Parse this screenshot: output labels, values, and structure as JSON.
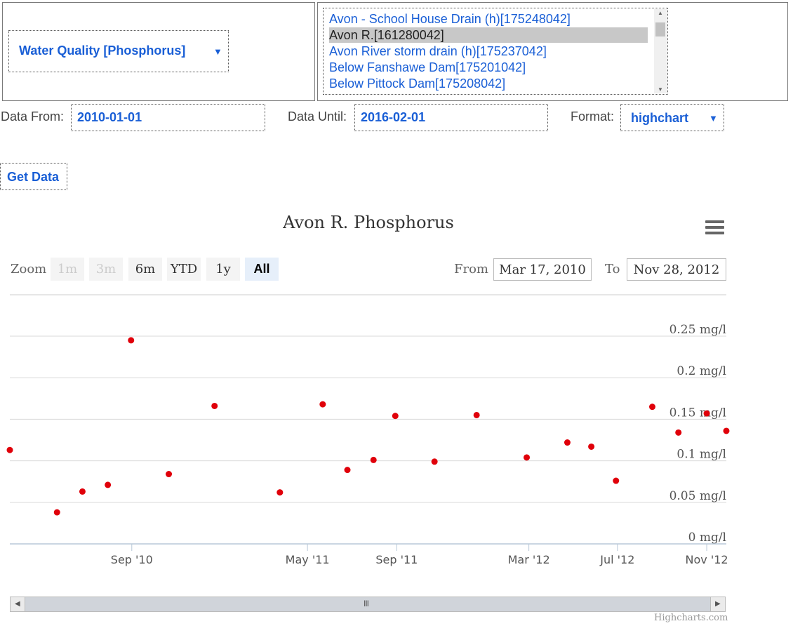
{
  "controls": {
    "dataset_select": "Water Quality [Phosphorus]",
    "stations": [
      "Avon - School House Drain (h)[175248042]",
      "Avon R.[161280042]",
      "Avon River storm drain (h)[175237042]",
      "Below Fanshawe Dam[175201042]",
      "Below Pittock Dam[175208042]"
    ],
    "selected_station_index": 1,
    "data_from_label": "Data From:",
    "data_from_value": "2010-01-01",
    "data_until_label": "Data Until:",
    "data_until_value": "2016-02-01",
    "format_label": "Format:",
    "format_value": "highchart",
    "get_data_label": "Get Data"
  },
  "chart_ui": {
    "zoom_label": "Zoom",
    "zoom_buttons": [
      "1m",
      "3m",
      "6m",
      "YTD",
      "1y",
      "All"
    ],
    "zoom_disabled": [
      true,
      true,
      false,
      false,
      false,
      false
    ],
    "zoom_active": "All",
    "from_label": "From",
    "from_value": "Mar 17, 2010",
    "to_label": "To",
    "to_value": "Nov 28, 2012",
    "credits": "Highcharts.com",
    "navigator_handle": "III"
  },
  "chart_data": {
    "type": "scatter",
    "title": "Avon R. Phosphorus",
    "xlabel": "",
    "ylabel": "",
    "y_unit": "mg/l",
    "ylim": [
      0,
      0.25
    ],
    "xlim": [
      "2010-03-17",
      "2012-11-28"
    ],
    "y_ticks": [
      "0 mg/l",
      "0.05 mg/l",
      "0.1 mg/l",
      "0.15 mg/l",
      "0.2 mg/l",
      "0.25 mg/l"
    ],
    "x_ticks": [
      {
        "label": "Sep '10",
        "date": "2010-09-01"
      },
      {
        "label": "May '11",
        "date": "2011-05-01"
      },
      {
        "label": "Sep '11",
        "date": "2011-09-01"
      },
      {
        "label": "Mar '12",
        "date": "2012-03-01"
      },
      {
        "label": "Jul '12",
        "date": "2012-07-01"
      },
      {
        "label": "Nov '12",
        "date": "2012-11-01"
      }
    ],
    "marker_color": "#e0000a",
    "grid": true,
    "points": [
      {
        "x": "2010-03-17",
        "y": 0.113
      },
      {
        "x": "2010-05-21",
        "y": 0.038
      },
      {
        "x": "2010-06-25",
        "y": 0.063
      },
      {
        "x": "2010-07-30",
        "y": 0.071
      },
      {
        "x": "2010-08-31",
        "y": 0.245
      },
      {
        "x": "2010-10-22",
        "y": 0.084
      },
      {
        "x": "2010-12-24",
        "y": 0.166
      },
      {
        "x": "2011-03-24",
        "y": 0.062
      },
      {
        "x": "2011-05-22",
        "y": 0.168
      },
      {
        "x": "2011-06-25",
        "y": 0.089
      },
      {
        "x": "2011-07-31",
        "y": 0.101
      },
      {
        "x": "2011-08-30",
        "y": 0.154
      },
      {
        "x": "2011-10-23",
        "y": 0.099
      },
      {
        "x": "2011-12-20",
        "y": 0.155
      },
      {
        "x": "2012-02-27",
        "y": 0.104
      },
      {
        "x": "2012-04-23",
        "y": 0.122
      },
      {
        "x": "2012-05-26",
        "y": 0.117
      },
      {
        "x": "2012-06-29",
        "y": 0.076
      },
      {
        "x": "2012-08-18",
        "y": 0.165
      },
      {
        "x": "2012-09-23",
        "y": 0.134
      },
      {
        "x": "2012-11-01",
        "y": 0.157
      },
      {
        "x": "2012-11-28",
        "y": 0.136
      }
    ]
  }
}
